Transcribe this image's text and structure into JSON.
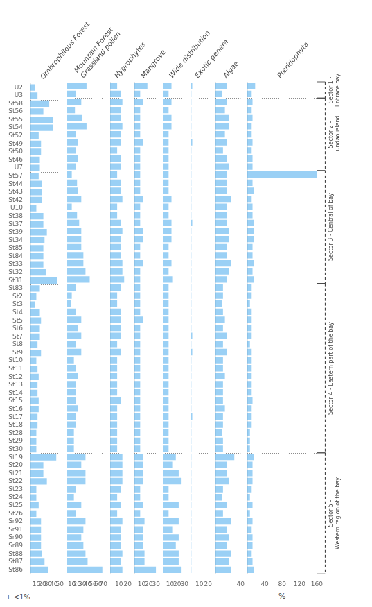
{
  "chart_data": [
    {
      "type": "bar",
      "orientation": "horizontal",
      "title": "Ombrophilous Forest",
      "grid": false,
      "categories": [
        "U2",
        "U3",
        "St58",
        "St56",
        "St55",
        "St54",
        "St52",
        "St49",
        "St50",
        "St46",
        "U7",
        "St57",
        "St44",
        "St43",
        "St42",
        "U10",
        "St38",
        "St37",
        "St39",
        "St34",
        "St85",
        "St84",
        "St33",
        "St32",
        "St31",
        "St83",
        "St2",
        "St3",
        "St4",
        "St5",
        "St6",
        "St7",
        "St8",
        "St9",
        "St10",
        "St11",
        "St12",
        "St13",
        "St14",
        "St15",
        "St16",
        "St17",
        "St18",
        "St28",
        "St29",
        "St30",
        "St19",
        "St20",
        "St21",
        "St22",
        "St23",
        "St24",
        "St25",
        "St26",
        "Sr92",
        "Sr91",
        "Sr90",
        "Sr89",
        "St88",
        "St87",
        "St86"
      ],
      "values": [
        8,
        12,
        32,
        22,
        38,
        38,
        14,
        18,
        18,
        16,
        16,
        14,
        20,
        20,
        20,
        10,
        22,
        22,
        28,
        24,
        22,
        22,
        22,
        26,
        46,
        16,
        10,
        8,
        16,
        18,
        16,
        16,
        12,
        18,
        10,
        12,
        14,
        12,
        12,
        14,
        14,
        12,
        12,
        10,
        10,
        10,
        44,
        22,
        22,
        28,
        10,
        10,
        14,
        10,
        18,
        18,
        18,
        18,
        20,
        24,
        30
      ],
      "xlim": [
        0,
        50
      ],
      "xticks": [
        10,
        20,
        30,
        40,
        50
      ],
      "annotations": [
        {
          "text": "+ <1%"
        }
      ]
    },
    {
      "type": "bar",
      "orientation": "horizontal",
      "title": "Mountain Forest\nGrassland pollen",
      "grid": false,
      "tick_labels": "x",
      "categories": [
        "U2",
        "U3",
        "St58",
        "St56",
        "St55",
        "St54",
        "St52",
        "St49",
        "St50",
        "St46",
        "U7",
        "St57",
        "St44",
        "St43",
        "St42",
        "U10",
        "St38",
        "St37",
        "St39",
        "St34",
        "St85",
        "St84",
        "St33",
        "St32",
        "St31",
        "St83",
        "St2",
        "St3",
        "St4",
        "St5",
        "St6",
        "St7",
        "St8",
        "St9",
        "St10",
        "St11",
        "St12",
        "St13",
        "St14",
        "St15",
        "St16",
        "St17",
        "St18",
        "St28",
        "St29",
        "St30",
        "St19",
        "St20",
        "St21",
        "St22",
        "St23",
        "St24",
        "St25",
        "St26",
        "Sr92",
        "Sr91",
        "Sr90",
        "Sr89",
        "St88",
        "St87",
        "St86"
      ],
      "values": [
        38,
        18,
        28,
        16,
        30,
        38,
        18,
        22,
        18,
        22,
        18,
        10,
        20,
        22,
        28,
        10,
        20,
        24,
        28,
        28,
        28,
        32,
        32,
        36,
        44,
        18,
        10,
        8,
        18,
        28,
        22,
        28,
        18,
        28,
        14,
        18,
        22,
        18,
        18,
        18,
        22,
        18,
        18,
        14,
        14,
        14,
        36,
        28,
        36,
        36,
        18,
        14,
        28,
        18,
        36,
        32,
        28,
        32,
        36,
        40,
        68
      ],
      "xlim": [
        0,
        70
      ],
      "xticks": [
        10,
        20,
        30,
        40,
        50,
        60,
        70
      ]
    },
    {
      "type": "bar",
      "orientation": "horizontal",
      "title": "Hygrophytes",
      "grid": false,
      "tick_labels": "x",
      "categories": [
        "U2",
        "U3",
        "St58",
        "St56",
        "St55",
        "St54",
        "St52",
        "St49",
        "St50",
        "St46",
        "U7",
        "St57",
        "St44",
        "St43",
        "St42",
        "U10",
        "St38",
        "St37",
        "St39",
        "St34",
        "St85",
        "St84",
        "St33",
        "St32",
        "St31",
        "St83",
        "St2",
        "St3",
        "St4",
        "St5",
        "St6",
        "St7",
        "St8",
        "St9",
        "St10",
        "St11",
        "St12",
        "St13",
        "St14",
        "St15",
        "St16",
        "St17",
        "St18",
        "St28",
        "St29",
        "St30",
        "St19",
        "St20",
        "St21",
        "St22",
        "St23",
        "St24",
        "St25",
        "St26",
        "Sr92",
        "Sr91",
        "Sr90",
        "Sr89",
        "St88",
        "St87",
        "St86"
      ],
      "values": [
        8,
        12,
        14,
        12,
        12,
        14,
        12,
        12,
        8,
        12,
        12,
        8,
        12,
        12,
        14,
        8,
        8,
        12,
        14,
        12,
        12,
        12,
        14,
        14,
        16,
        12,
        8,
        8,
        12,
        12,
        12,
        12,
        8,
        12,
        8,
        8,
        8,
        8,
        8,
        12,
        8,
        8,
        8,
        8,
        8,
        8,
        14,
        14,
        14,
        14,
        12,
        8,
        12,
        8,
        14,
        12,
        12,
        12,
        14,
        12,
        14
      ],
      "xlim": [
        0,
        20
      ],
      "xticks": [
        10,
        20
      ]
    },
    {
      "type": "bar",
      "orientation": "horizontal",
      "title": "Mangrove",
      "grid": false,
      "tick_labels": "x",
      "categories": [
        "U2",
        "U3",
        "St58",
        "St56",
        "St55",
        "St54",
        "St52",
        "St49",
        "St50",
        "St46",
        "U7",
        "St57",
        "St44",
        "St43",
        "St42",
        "U10",
        "St38",
        "St37",
        "St39",
        "St34",
        "St85",
        "St84",
        "St33",
        "St32",
        "St31",
        "St83",
        "St2",
        "St3",
        "St4",
        "St5",
        "St6",
        "St7",
        "St8",
        "St9",
        "St10",
        "St11",
        "St12",
        "St13",
        "St14",
        "St15",
        "St16",
        "St17",
        "St18",
        "St28",
        "St29",
        "St30",
        "St19",
        "St20",
        "St21",
        "St22",
        "St23",
        "St24",
        "St25",
        "St26",
        "Sr92",
        "Sr91",
        "Sr90",
        "Sr89",
        "St88",
        "St87",
        "St86"
      ],
      "values": [
        18,
        8,
        12,
        8,
        8,
        8,
        8,
        12,
        8,
        8,
        8,
        8,
        8,
        8,
        12,
        8,
        8,
        8,
        12,
        12,
        8,
        8,
        12,
        8,
        8,
        8,
        8,
        8,
        8,
        12,
        8,
        8,
        8,
        8,
        8,
        8,
        8,
        8,
        8,
        8,
        8,
        8,
        8,
        8,
        8,
        8,
        12,
        12,
        12,
        12,
        8,
        8,
        12,
        8,
        14,
        12,
        12,
        12,
        14,
        14,
        30
      ],
      "xlim": [
        0,
        30
      ],
      "xticks": [
        10,
        20,
        30
      ]
    },
    {
      "type": "bar",
      "orientation": "horizontal",
      "title": "Wide distribution",
      "grid": false,
      "tick_labels": "x",
      "categories": [
        "U2",
        "U3",
        "St58",
        "St56",
        "St55",
        "St54",
        "St52",
        "St49",
        "St50",
        "St46",
        "U7",
        "St57",
        "St44",
        "St43",
        "St42",
        "U10",
        "St38",
        "St37",
        "St39",
        "St34",
        "St85",
        "St84",
        "St33",
        "St32",
        "St31",
        "St83",
        "St2",
        "St3",
        "St4",
        "St5",
        "St6",
        "St7",
        "St8",
        "St9",
        "St10",
        "St11",
        "St12",
        "St13",
        "St14",
        "St15",
        "St16",
        "St17",
        "St18",
        "St28",
        "St29",
        "St30",
        "St19",
        "St20",
        "St21",
        "St22",
        "St23",
        "St24",
        "St25",
        "St26",
        "Sr92",
        "Sr91",
        "Sr90",
        "Sr89",
        "St88",
        "St87",
        "St86"
      ],
      "values": [
        12,
        8,
        12,
        8,
        12,
        12,
        8,
        8,
        8,
        8,
        8,
        8,
        8,
        8,
        12,
        8,
        8,
        12,
        12,
        12,
        8,
        8,
        12,
        8,
        14,
        8,
        8,
        8,
        8,
        8,
        8,
        8,
        8,
        8,
        8,
        8,
        8,
        8,
        8,
        8,
        8,
        8,
        8,
        8,
        8,
        8,
        18,
        14,
        22,
        26,
        8,
        8,
        22,
        8,
        22,
        14,
        22,
        18,
        22,
        22,
        26
      ],
      "xlim": [
        0,
        30
      ],
      "xticks": [
        10,
        20,
        30
      ]
    },
    {
      "type": "bar",
      "orientation": "horizontal",
      "title": "Exotic genera",
      "grid": false,
      "tick_labels": "x",
      "categories": [
        "U2",
        "U3",
        "St58",
        "St56",
        "St55",
        "St54",
        "St52",
        "St49",
        "St50",
        "St46",
        "U7",
        "St57",
        "St44",
        "St43",
        "St42",
        "U10",
        "St38",
        "St37",
        "St39",
        "St34",
        "St85",
        "St84",
        "St33",
        "St32",
        "St31",
        "St83",
        "St2",
        "St3",
        "St4",
        "St5",
        "St6",
        "St7",
        "St8",
        "St9",
        "St10",
        "St11",
        "St12",
        "St13",
        "St14",
        "St15",
        "St16",
        "St17",
        "St18",
        "St28",
        "St29",
        "St30",
        "St19",
        "St20",
        "St21",
        "St22",
        "St23",
        "St24",
        "St25",
        "St26",
        "Sr92",
        "Sr91",
        "Sr90",
        "Sr89",
        "St88",
        "St87",
        "St86"
      ],
      "values": [
        2,
        1,
        1,
        1,
        1,
        1,
        1,
        2,
        1,
        1,
        1,
        1,
        1,
        1,
        1,
        1,
        1,
        2,
        1,
        1,
        1,
        1,
        1,
        1,
        1,
        1,
        1,
        1,
        1,
        1,
        1,
        2,
        1,
        2,
        1,
        1,
        1,
        1,
        1,
        1,
        1,
        2,
        1,
        1,
        1,
        1,
        1,
        1,
        1,
        1,
        1,
        1,
        1,
        1,
        1,
        1,
        1,
        1,
        1,
        1,
        1
      ],
      "xlim": [
        0,
        20
      ],
      "xticks": [
        10,
        20
      ]
    },
    {
      "type": "bar",
      "orientation": "horizontal",
      "title": "Algae",
      "grid": false,
      "tick_labels": "x",
      "categories": [
        "U2",
        "U3",
        "St58",
        "St56",
        "St55",
        "St54",
        "St52",
        "St49",
        "St50",
        "St46",
        "U7",
        "St57",
        "St44",
        "St43",
        "St42",
        "U10",
        "St38",
        "St37",
        "St39",
        "St34",
        "St85",
        "St84",
        "St33",
        "St32",
        "St31",
        "St83",
        "St2",
        "St3",
        "St4",
        "St5",
        "St6",
        "St7",
        "St8",
        "St9",
        "St10",
        "St11",
        "St12",
        "St13",
        "St14",
        "St15",
        "St16",
        "St17",
        "St18",
        "St28",
        "St29",
        "St30",
        "St19",
        "St20",
        "St21",
        "St22",
        "St23",
        "St24",
        "St25",
        "St26",
        "Sr92",
        "Sr91",
        "Sr90",
        "Sr89",
        "St88",
        "St87",
        "St86"
      ],
      "values": [
        18,
        10,
        18,
        15,
        22,
        22,
        15,
        18,
        12,
        18,
        22,
        18,
        18,
        18,
        25,
        18,
        18,
        18,
        22,
        22,
        18,
        18,
        25,
        22,
        18,
        12,
        12,
        10,
        12,
        15,
        12,
        18,
        12,
        18,
        12,
        12,
        15,
        12,
        12,
        12,
        15,
        12,
        12,
        10,
        12,
        12,
        30,
        18,
        18,
        22,
        12,
        10,
        18,
        12,
        25,
        18,
        22,
        18,
        25,
        22,
        25
      ],
      "xlim": [
        0,
        40
      ],
      "xticks": [
        40
      ]
    },
    {
      "type": "bar",
      "orientation": "horizontal",
      "title": "Pteridophyta",
      "grid": false,
      "tick_labels": "x",
      "categories": [
        "U2",
        "U3",
        "St58",
        "St56",
        "St55",
        "St54",
        "St52",
        "St49",
        "St50",
        "St46",
        "U7",
        "St57",
        "St44",
        "St43",
        "St42",
        "U10",
        "St38",
        "St37",
        "St39",
        "St34",
        "St85",
        "St84",
        "St33",
        "St32",
        "St31",
        "St83",
        "St2",
        "St3",
        "St4",
        "St5",
        "St6",
        "St7",
        "St8",
        "St9",
        "St10",
        "St11",
        "St12",
        "St13",
        "St14",
        "St15",
        "St16",
        "St17",
        "St18",
        "St28",
        "St29",
        "St30",
        "St19",
        "St20",
        "St21",
        "St22",
        "St23",
        "St24",
        "St25",
        "St26",
        "Sr92",
        "Sr91",
        "Sr90",
        "Sr89",
        "St88",
        "St87",
        "St86"
      ],
      "values": [
        18,
        10,
        12,
        10,
        12,
        10,
        10,
        12,
        10,
        12,
        12,
        160,
        12,
        15,
        10,
        12,
        12,
        15,
        15,
        15,
        12,
        12,
        15,
        12,
        15,
        10,
        10,
        6,
        10,
        10,
        10,
        10,
        6,
        10,
        10,
        10,
        10,
        10,
        10,
        12,
        10,
        10,
        10,
        6,
        6,
        6,
        15,
        12,
        12,
        12,
        10,
        6,
        12,
        6,
        12,
        10,
        12,
        12,
        10,
        12,
        15
      ],
      "xlim": [
        0,
        160
      ],
      "xticks": [
        40,
        80,
        120,
        160
      ],
      "xlabel": "%",
      "annotations": [
        {
          "text": "Sector 1 -\nEntrace bay",
          "from": "U2",
          "to": "U3"
        },
        {
          "text": "Sector 2 -\nFundao island",
          "from": "St58",
          "to": "U7"
        },
        {
          "text": "Sector 3 - Central of bay",
          "from": "St57",
          "to": "St31"
        },
        {
          "text": "Sector 4 - Eastern part of the bay",
          "from": "St83",
          "to": "St30"
        },
        {
          "text": "Sector 5 -\nWestern region of the bay",
          "from": "St19",
          "to": "St86"
        }
      ]
    }
  ]
}
